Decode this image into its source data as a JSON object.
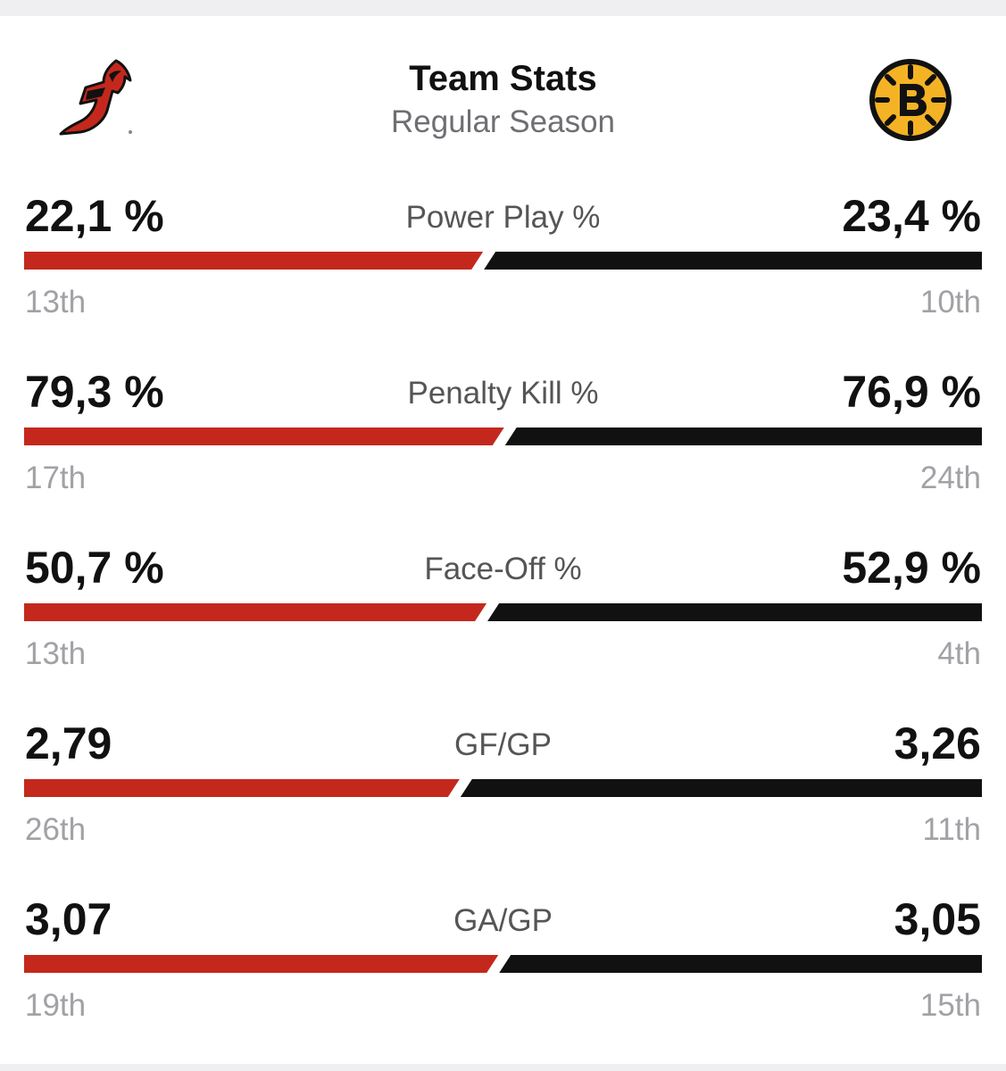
{
  "header": {
    "title": "Team Stats",
    "subtitle": "Regular Season",
    "home_logo_icon": "new-jersey-devils-logo-icon",
    "away_logo_icon": "boston-bruins-logo-icon"
  },
  "colors": {
    "home": "#c4281d",
    "away": "#111111",
    "rank": "#a1a1a6",
    "label": "#555555"
  },
  "stats": [
    {
      "label": "Power Play %",
      "home_value": "22,1 %",
      "away_value": "23,4 %",
      "home_rank": "13th",
      "away_rank": "10th",
      "home_num": 22.1,
      "away_num": 23.4
    },
    {
      "label": "Penalty Kill %",
      "home_value": "79,3 %",
      "away_value": "76,9 %",
      "home_rank": "17th",
      "away_rank": "24th",
      "home_num": 79.3,
      "away_num": 76.9
    },
    {
      "label": "Face-Off %",
      "home_value": "50,7 %",
      "away_value": "52,9 %",
      "home_rank": "13th",
      "away_rank": "4th",
      "home_num": 50.7,
      "away_num": 52.9
    },
    {
      "label": "GF/GP",
      "home_value": "2,79",
      "away_value": "3,26",
      "home_rank": "26th",
      "away_rank": "11th",
      "home_num": 2.79,
      "away_num": 3.26
    },
    {
      "label": "GA/GP",
      "home_value": "3,07",
      "away_value": "3,05",
      "home_rank": "19th",
      "away_rank": "15th",
      "home_num": 3.07,
      "away_num": 3.05
    }
  ]
}
